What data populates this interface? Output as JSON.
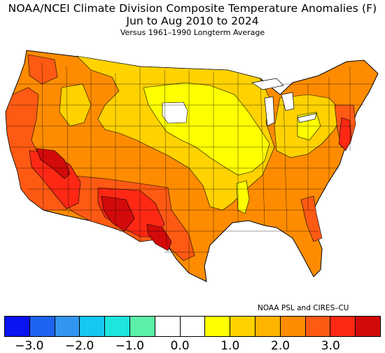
{
  "title": {
    "line1": "NOAA/NCEI Climate Division Composite Temperature Anomalies (F)",
    "line2": "Jun to Aug 2010 to 2024",
    "line3": "Versus 1961–1990 Longterm Average"
  },
  "credit": "NOAA PSL and CIRES–CU",
  "colorbar": {
    "colors": [
      "#0a14f0",
      "#1e64f0",
      "#3296f0",
      "#14c8f0",
      "#1ee6dc",
      "#5af0a8",
      "#ffffff",
      "#ffffff",
      "#ffff00",
      "#ffd200",
      "#ffb400",
      "#ff8c00",
      "#ff5a14",
      "#ff2814",
      "#d20a0a"
    ],
    "ticks": [
      "−3.0",
      "−2.0",
      "−1.0",
      "0.0",
      "1.0",
      "2.0",
      "3.0"
    ]
  },
  "map_legend_colors": {
    "anom_0_0.5": "#ffffff",
    "anom_0.5_1.0": "#ffff00",
    "anom_1.0_1.5": "#ffd200",
    "anom_1.5_2.0": "#ffb400",
    "anom_2.0_2.5": "#ff8c00",
    "anom_2.5_3.0": "#ff5a14",
    "anom_3.0_3.5": "#ff2814",
    "anom_gt_3.5": "#d20a0a"
  }
}
